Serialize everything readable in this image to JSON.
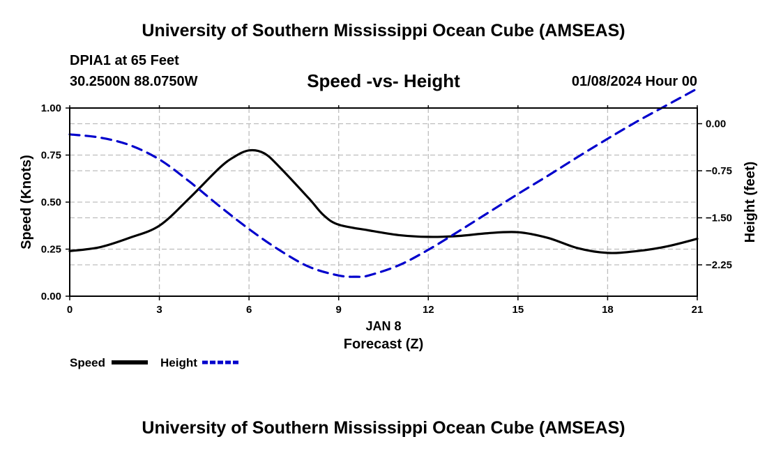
{
  "page_title_top": "University of Southern Mississippi Ocean Cube (AMSEAS)",
  "page_title_bottom": "University of Southern Mississippi Ocean Cube (AMSEAS)",
  "station": "DPIA1 at 65 Feet",
  "coords": "30.2500N  88.0750W",
  "datetime": "01/08/2024 Hour 00",
  "chart_data": {
    "type": "line",
    "title": "Speed -vs- Height",
    "xlabel_date": "JAN 8",
    "xlabel": "Forecast (Z)",
    "ylabel_left": "Speed (Knots)",
    "ylabel_right": "Height (feet)",
    "xlim": [
      0,
      21
    ],
    "ylim_left": [
      0,
      1
    ],
    "ylim_right": [
      -2.75,
      0.25
    ],
    "xticks": [
      0,
      3,
      6,
      9,
      12,
      15,
      18,
      21
    ],
    "xtick_labels": [
      "0",
      "3",
      "6",
      "9",
      "12",
      "15",
      "18",
      "21"
    ],
    "yticks_left": [
      0,
      0.25,
      0.5,
      0.75,
      1.0
    ],
    "ytick_labels_left": [
      "0.00",
      "0.25",
      "0.50",
      "0.75",
      "1.00"
    ],
    "yticks_right": [
      -2.25,
      -1.5,
      -0.75,
      0.0
    ],
    "ytick_labels_right": [
      "−2.25",
      "−1.50",
      "−0.75",
      "0.00"
    ],
    "grid": true,
    "legend": [
      {
        "label": "Speed",
        "color": "#000000",
        "dash": "solid"
      },
      {
        "label": "Height",
        "color": "#0000cc",
        "dash": "dashed"
      }
    ],
    "series": [
      {
        "name": "Speed",
        "axis": "left",
        "color": "#000000",
        "x": [
          0,
          1,
          2,
          3,
          4,
          5,
          5.5,
          6,
          6.5,
          7,
          8,
          8.5,
          9,
          10,
          11,
          12,
          13,
          14,
          15,
          16,
          17,
          18,
          19,
          20,
          21
        ],
        "y": [
          0.24,
          0.26,
          0.31,
          0.375,
          0.52,
          0.68,
          0.74,
          0.775,
          0.76,
          0.69,
          0.52,
          0.43,
          0.38,
          0.35,
          0.325,
          0.315,
          0.32,
          0.335,
          0.34,
          0.31,
          0.255,
          0.23,
          0.24,
          0.265,
          0.305
        ]
      },
      {
        "name": "Height",
        "axis": "right",
        "color": "#0000cc",
        "x": [
          0,
          1,
          2,
          3,
          4,
          5,
          6,
          7,
          8,
          9,
          9.6,
          10,
          11,
          12,
          13,
          14,
          15,
          16,
          17,
          18,
          19,
          20,
          21
        ],
        "y": [
          -0.17,
          -0.22,
          -0.34,
          -0.57,
          -0.92,
          -1.31,
          -1.68,
          -2.01,
          -2.28,
          -2.42,
          -2.44,
          -2.42,
          -2.26,
          -2.01,
          -1.72,
          -1.42,
          -1.12,
          -0.83,
          -0.53,
          -0.24,
          0.04,
          0.3,
          0.56
        ]
      }
    ]
  }
}
